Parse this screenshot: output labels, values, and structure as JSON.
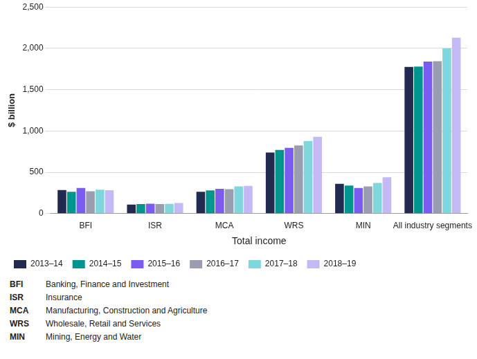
{
  "chart_data": {
    "type": "bar",
    "x_label": "Total income",
    "y_label": "$ billion",
    "categories": [
      "BFI",
      "ISR",
      "MCA",
      "WRS",
      "MIN",
      "All industry segments"
    ],
    "series": [
      {
        "name": "2013–14",
        "color": "#232a4f",
        "values": [
          285,
          110,
          265,
          740,
          360,
          1775
        ]
      },
      {
        "name": "2014–15",
        "color": "#00968f",
        "values": [
          265,
          115,
          280,
          770,
          340,
          1780
        ]
      },
      {
        "name": "2015–16",
        "color": "#7b5cf0",
        "values": [
          310,
          120,
          300,
          795,
          310,
          1840
        ]
      },
      {
        "name": "2016–17",
        "color": "#9a9db0",
        "values": [
          270,
          115,
          295,
          825,
          330,
          1845
        ]
      },
      {
        "name": "2017–18",
        "color": "#7fd6dc",
        "values": [
          290,
          118,
          330,
          880,
          370,
          2000
        ]
      },
      {
        "name": "2018–19",
        "color": "#c4b8f5",
        "values": [
          283,
          128,
          335,
          930,
          440,
          2130
        ]
      }
    ],
    "ylim": [
      0,
      2500
    ],
    "yticks": [
      0,
      500,
      {
        "value": 1000,
        "label": "1,000"
      },
      {
        "value": 1500,
        "label": "1,500"
      },
      {
        "value": 2000,
        "label": "2,000"
      },
      {
        "value": 2500,
        "label": "2,500"
      }
    ],
    "grid": true,
    "legend": "bottom",
    "annotations": [
      {
        "label": "BFI",
        "text": "Banking, Finance and Investment"
      },
      {
        "label": "ISR",
        "text": "Insurance"
      },
      {
        "label": "MCA",
        "text": "Manufacturing, Construction and Agriculture"
      },
      {
        "label": "WRS",
        "text": "Wholesale, Retail and Services"
      },
      {
        "label": "MIN",
        "text": "Mining, Energy and Water"
      }
    ]
  }
}
